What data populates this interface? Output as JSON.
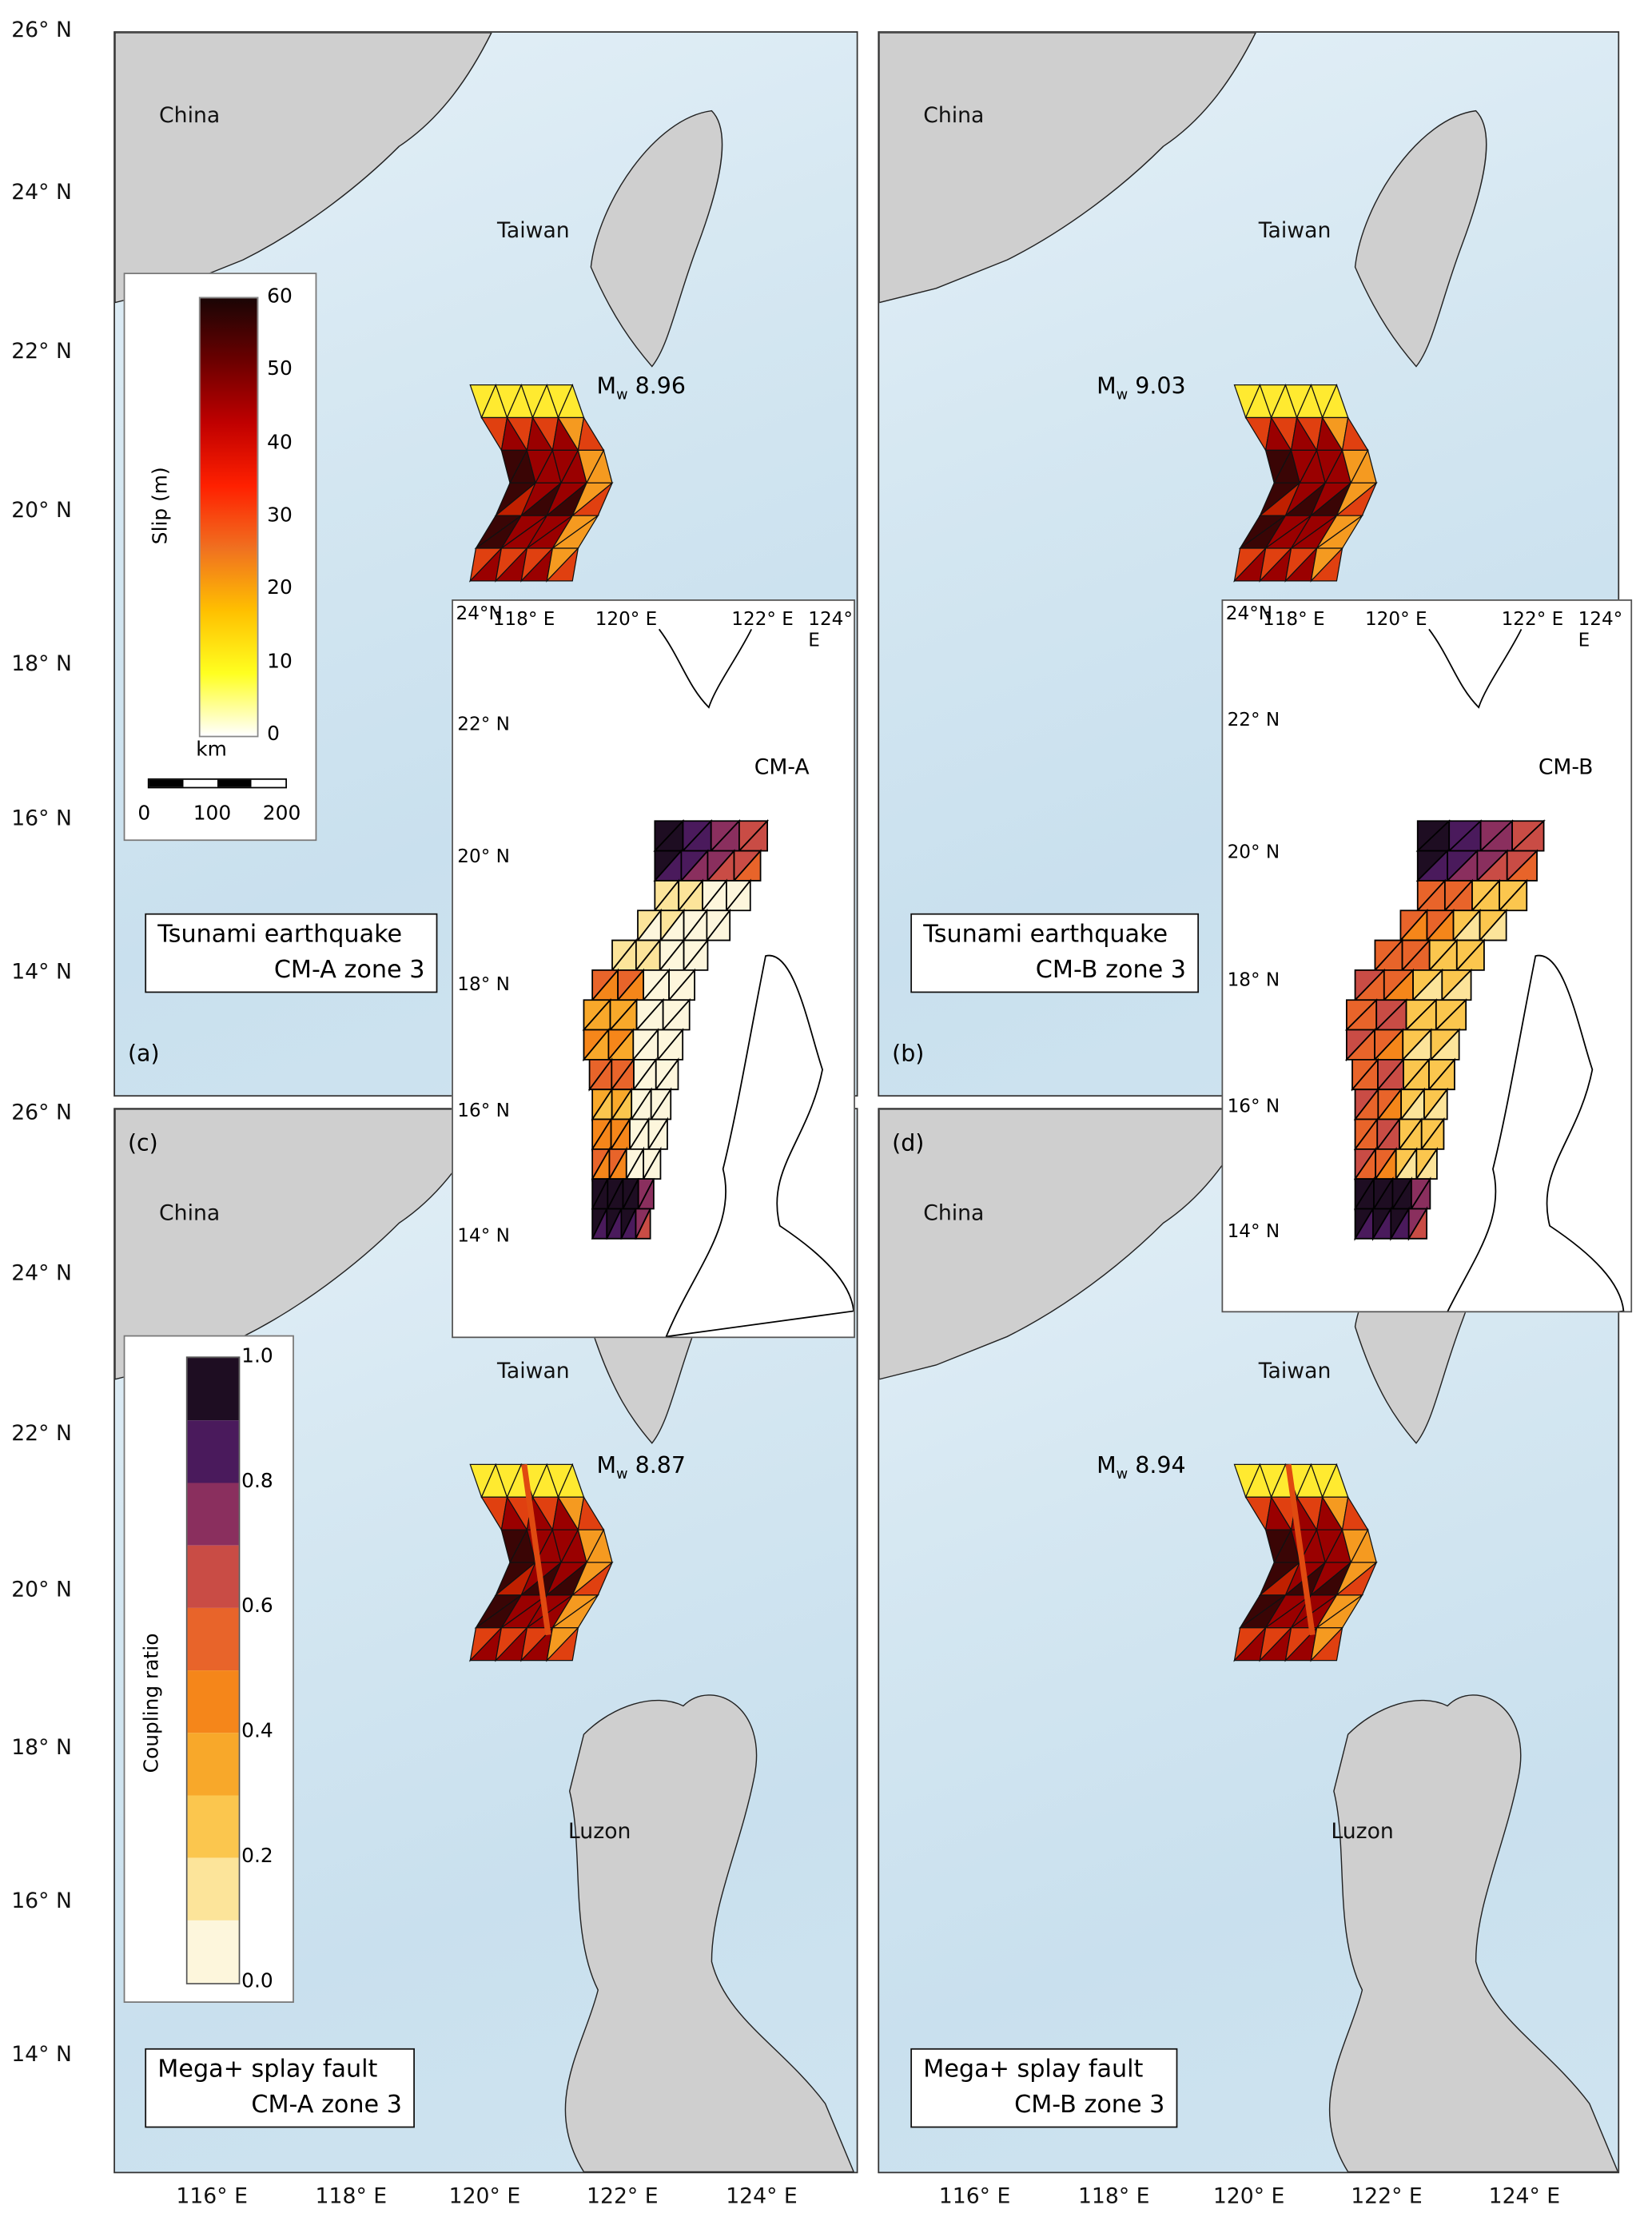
{
  "lat_labels_top": [
    "26° N",
    "24° N",
    "22° N",
    "20° N",
    "18° N",
    "16° N",
    "14° N"
  ],
  "lat_labels_bottom": [
    "26° N",
    "24° N",
    "22° N",
    "20° N",
    "18° N",
    "16° N",
    "14° N"
  ],
  "lon_labels": [
    "116° E",
    "118° E",
    "120° E",
    "122° E",
    "124° E"
  ],
  "places": {
    "china": "China",
    "taiwan": "Taiwan",
    "luzon": "Luzon"
  },
  "panels": [
    {
      "letter": "(a)",
      "mw_prefix": "M",
      "mw_sub": "w",
      "mw_value": "8.96",
      "title1": "Tsunami earthquake",
      "title2": "CM-A zone 3"
    },
    {
      "letter": "(b)",
      "mw_prefix": "M",
      "mw_sub": "w",
      "mw_value": "9.03",
      "title1": "Tsunami earthquake",
      "title2": "CM-B zone 3"
    },
    {
      "letter": "(c)",
      "mw_prefix": "M",
      "mw_sub": "w",
      "mw_value": "8.87",
      "title1": "Mega+ splay fault",
      "title2": "CM-A zone 3"
    },
    {
      "letter": "(d)",
      "mw_prefix": "M",
      "mw_sub": "w",
      "mw_value": "8.94",
      "title1": "Mega+ splay fault",
      "title2": "CM-B zone 3"
    }
  ],
  "slip_legend": {
    "label": "Slip (m)",
    "ticks": [
      "60",
      "50",
      "40",
      "30",
      "20",
      "10",
      "0"
    ],
    "colors": [
      "#1a0505",
      "#6b0000",
      "#c00000",
      "#ff2000",
      "#f07020",
      "#ffc000",
      "#ffff20",
      "#ffffff"
    ]
  },
  "scale_bar": {
    "unit": "km",
    "ticks": [
      "0",
      "100",
      "200"
    ]
  },
  "coupling_legend": {
    "label": "Coupling ratio",
    "ticks": [
      "1.0",
      "0.8",
      "0.6",
      "0.4",
      "0.2",
      "0.0"
    ],
    "colors": [
      "#1e0d22",
      "#4a1a5c",
      "#8a2f5e",
      "#c94c45",
      "#e8642a",
      "#f5861a",
      "#f8a82a",
      "#fbc64e",
      "#fce49a",
      "#fdf6dc"
    ]
  },
  "insets": [
    {
      "name": "CM-A",
      "lon": [
        "24°N",
        "118° E",
        "120° E",
        "122° E",
        "124° E"
      ],
      "lat": [
        "22° N",
        "20° N",
        "18° N",
        "16° N",
        "14° N"
      ]
    },
    {
      "name": "CM-B",
      "lon": [
        "24°N",
        "118° E",
        "120° E",
        "122° E",
        "124° E"
      ],
      "lat": [
        "22° N",
        "20° N",
        "18° N",
        "16° N",
        "14° N"
      ]
    }
  ]
}
